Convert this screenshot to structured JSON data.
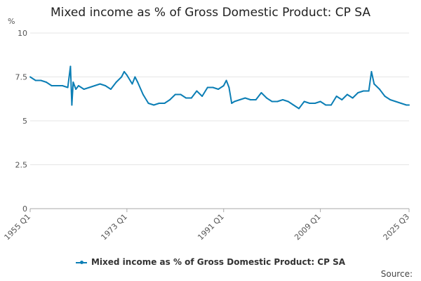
{
  "chart_data": {
    "type": "line",
    "title": "Mixed income as % of Gross Domestic Product: CP SA",
    "ylabel": "%",
    "xlabel": "",
    "ylim": [
      0,
      10
    ],
    "y_ticks": [
      "0",
      "2.5",
      "5",
      "7.5",
      "10"
    ],
    "x_ticks": [
      "1955 Q1",
      "1973 Q1",
      "1991 Q1",
      "2009 Q1",
      "2025 Q3"
    ],
    "grid": true,
    "legend_position": "bottom-center",
    "series": [
      {
        "name": "Mixed income as % of Gross Domestic Product: CP SA",
        "color": "#0b7eb5",
        "points": [
          [
            "1955 Q1",
            7.5
          ],
          [
            "1956 Q1",
            7.3
          ],
          [
            "1957 Q1",
            7.3
          ],
          [
            "1958 Q1",
            7.2
          ],
          [
            "1959 Q1",
            7.0
          ],
          [
            "1960 Q1",
            7.0
          ],
          [
            "1961 Q1",
            7.0
          ],
          [
            "1962 Q1",
            6.9
          ],
          [
            "1962 Q3",
            8.1
          ],
          [
            "1962 Q4",
            5.9
          ],
          [
            "1963 Q1",
            7.2
          ],
          [
            "1963 Q3",
            6.8
          ],
          [
            "1964 Q1",
            7.0
          ],
          [
            "1965 Q1",
            6.8
          ],
          [
            "1966 Q1",
            6.9
          ],
          [
            "1967 Q1",
            7.0
          ],
          [
            "1968 Q1",
            7.1
          ],
          [
            "1969 Q1",
            7.0
          ],
          [
            "1970 Q1",
            6.8
          ],
          [
            "1971 Q1",
            7.2
          ],
          [
            "1972 Q1",
            7.5
          ],
          [
            "1972 Q3",
            7.8
          ],
          [
            "1973 Q1",
            7.6
          ],
          [
            "1974 Q1",
            7.1
          ],
          [
            "1974 Q3",
            7.5
          ],
          [
            "1975 Q1",
            7.2
          ],
          [
            "1976 Q1",
            6.5
          ],
          [
            "1977 Q1",
            6.0
          ],
          [
            "1978 Q1",
            5.9
          ],
          [
            "1979 Q1",
            6.0
          ],
          [
            "1980 Q1",
            6.0
          ],
          [
            "1981 Q1",
            6.2
          ],
          [
            "1982 Q1",
            6.5
          ],
          [
            "1983 Q1",
            6.5
          ],
          [
            "1984 Q1",
            6.3
          ],
          [
            "1985 Q1",
            6.3
          ],
          [
            "1986 Q1",
            6.7
          ],
          [
            "1987 Q1",
            6.4
          ],
          [
            "1988 Q1",
            6.9
          ],
          [
            "1989 Q1",
            6.9
          ],
          [
            "1990 Q1",
            6.8
          ],
          [
            "1991 Q1",
            7.0
          ],
          [
            "1991 Q3",
            7.3
          ],
          [
            "1992 Q1",
            6.9
          ],
          [
            "1992 Q3",
            6.0
          ],
          [
            "1993 Q1",
            6.1
          ],
          [
            "1994 Q1",
            6.2
          ],
          [
            "1995 Q1",
            6.3
          ],
          [
            "1996 Q1",
            6.2
          ],
          [
            "1997 Q1",
            6.2
          ],
          [
            "1998 Q1",
            6.6
          ],
          [
            "1999 Q1",
            6.3
          ],
          [
            "2000 Q1",
            6.1
          ],
          [
            "2001 Q1",
            6.1
          ],
          [
            "2002 Q1",
            6.2
          ],
          [
            "2003 Q1",
            6.1
          ],
          [
            "2004 Q1",
            5.9
          ],
          [
            "2005 Q1",
            5.7
          ],
          [
            "2006 Q1",
            6.1
          ],
          [
            "2007 Q1",
            6.0
          ],
          [
            "2008 Q1",
            6.0
          ],
          [
            "2009 Q1",
            6.1
          ],
          [
            "2010 Q1",
            5.9
          ],
          [
            "2011 Q1",
            5.9
          ],
          [
            "2012 Q1",
            6.4
          ],
          [
            "2013 Q1",
            6.2
          ],
          [
            "2014 Q1",
            6.5
          ],
          [
            "2015 Q1",
            6.3
          ],
          [
            "2016 Q1",
            6.6
          ],
          [
            "2017 Q1",
            6.7
          ],
          [
            "2018 Q1",
            6.7
          ],
          [
            "2018 Q3",
            7.8
          ],
          [
            "2019 Q1",
            7.1
          ],
          [
            "2020 Q1",
            6.8
          ],
          [
            "2021 Q1",
            6.4
          ],
          [
            "2022 Q1",
            6.2
          ],
          [
            "2023 Q1",
            6.1
          ],
          [
            "2024 Q1",
            6.0
          ],
          [
            "2025 Q1",
            5.9
          ],
          [
            "2025 Q3",
            5.9
          ]
        ]
      }
    ]
  },
  "footer": {
    "source_label": "Source:"
  }
}
